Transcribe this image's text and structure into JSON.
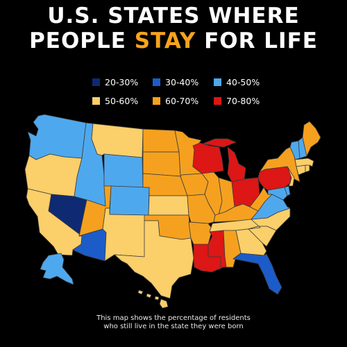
{
  "title": {
    "line1": "U.S. STATES WHERE",
    "line2_pre": "PEOPLE ",
    "line2_highlight": "STAY",
    "line2_post": " FOR LIFE"
  },
  "colors": {
    "background": "#000000",
    "highlight": "#f7a41d",
    "20-30%": "#0e2a73",
    "30-40%": "#1c5cc8",
    "40-50%": "#4ea8ee",
    "50-60%": "#fbcf6a",
    "60-70%": "#f5a11f",
    "70-80%": "#dd1616",
    "state_border": "#3a3a3a"
  },
  "legend": [
    {
      "label": "20-30%",
      "color": "#0e2a73"
    },
    {
      "label": "30-40%",
      "color": "#1c5cc8"
    },
    {
      "label": "40-50%",
      "color": "#4ea8ee"
    },
    {
      "label": "50-60%",
      "color": "#fbcf6a"
    },
    {
      "label": "60-70%",
      "color": "#f5a11f"
    },
    {
      "label": "70-80%",
      "color": "#dd1616"
    }
  ],
  "states": {
    "WA": "40-50%",
    "OR": "50-60%",
    "CA": "50-60%",
    "NV": "20-30%",
    "ID": "40-50%",
    "MT": "50-60%",
    "WY": "40-50%",
    "UT": "60-70%",
    "AZ": "30-40%",
    "CO": "40-50%",
    "NM": "50-60%",
    "ND": "60-70%",
    "SD": "60-70%",
    "NE": "60-70%",
    "KS": "50-60%",
    "OK": "60-70%",
    "TX": "50-60%",
    "MN": "60-70%",
    "IA": "60-70%",
    "MO": "60-70%",
    "AR": "60-70%",
    "LA": "70-80%",
    "WI": "70-80%",
    "IL": "60-70%",
    "MI": "70-80%",
    "IN": "60-70%",
    "OH": "70-80%",
    "KY": "60-70%",
    "TN": "50-60%",
    "MS": "70-80%",
    "AL": "60-70%",
    "GA": "50-60%",
    "FL": "30-40%",
    "SC": "50-60%",
    "NC": "50-60%",
    "VA": "40-50%",
    "WV": "60-70%",
    "MD": "40-50%",
    "DE": "40-50%",
    "PA": "70-80%",
    "NY": "60-70%",
    "NJ": "50-60%",
    "CT": "50-60%",
    "RI": "50-60%",
    "MA": "50-60%",
    "VT": "40-50%",
    "NH": "40-50%",
    "ME": "60-70%",
    "AK": "40-50%",
    "HI": "50-60%"
  },
  "caption": {
    "line1": "This map shows the percentage of residents",
    "line2": "who still live in the state they were born"
  }
}
